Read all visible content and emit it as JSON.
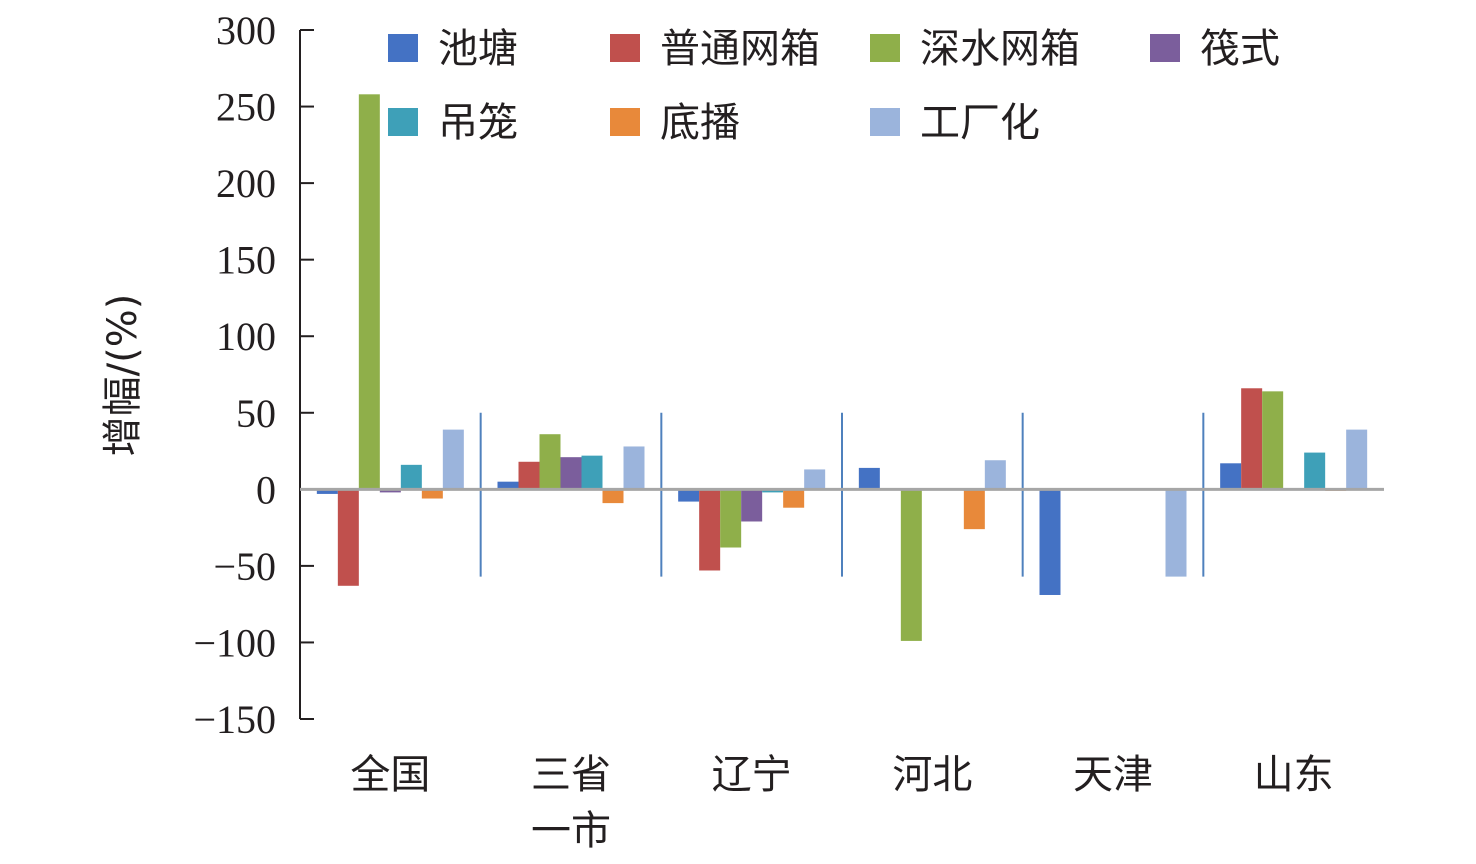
{
  "chart_data": {
    "type": "bar",
    "title": "",
    "xlabel": "",
    "ylabel": "增幅/(%)",
    "ylim": [
      -150,
      300
    ],
    "yticks": [
      300,
      250,
      200,
      150,
      100,
      50,
      0,
      -50,
      -100,
      -150
    ],
    "ytick_labels": [
      "300",
      "250",
      "200",
      "150",
      "100",
      "50",
      "0",
      "−50",
      "−100",
      "−150"
    ],
    "categories": [
      {
        "lines": [
          "全国"
        ]
      },
      {
        "lines": [
          "三省",
          "一市"
        ]
      },
      {
        "lines": [
          "辽宁"
        ]
      },
      {
        "lines": [
          "河北"
        ]
      },
      {
        "lines": [
          "天津"
        ]
      },
      {
        "lines": [
          "山东"
        ]
      }
    ],
    "legend_position": "top",
    "series": [
      {
        "name": "池塘",
        "color": "#4472c4",
        "values": [
          -3,
          5,
          -8,
          14,
          -69,
          17
        ]
      },
      {
        "name": "普通网箱",
        "color": "#c0504d",
        "values": [
          -63,
          18,
          -53,
          0,
          0,
          66
        ]
      },
      {
        "name": "深水网箱",
        "color": "#8faf4a",
        "values": [
          258,
          36,
          -38,
          -99,
          0,
          64
        ]
      },
      {
        "name": "筏式",
        "color": "#7b5e9c",
        "values": [
          -2,
          21,
          -21,
          0,
          0,
          0
        ]
      },
      {
        "name": "吊笼",
        "color": "#3ea0b8",
        "values": [
          16,
          22,
          -2,
          0,
          0,
          24
        ]
      },
      {
        "name": "底播",
        "color": "#e8893a",
        "values": [
          -6,
          -9,
          -12,
          -26,
          0,
          -1
        ]
      },
      {
        "name": "工厂化",
        "color": "#9bb4dc",
        "values": [
          39,
          28,
          13,
          19,
          -57,
          39
        ]
      }
    ]
  }
}
